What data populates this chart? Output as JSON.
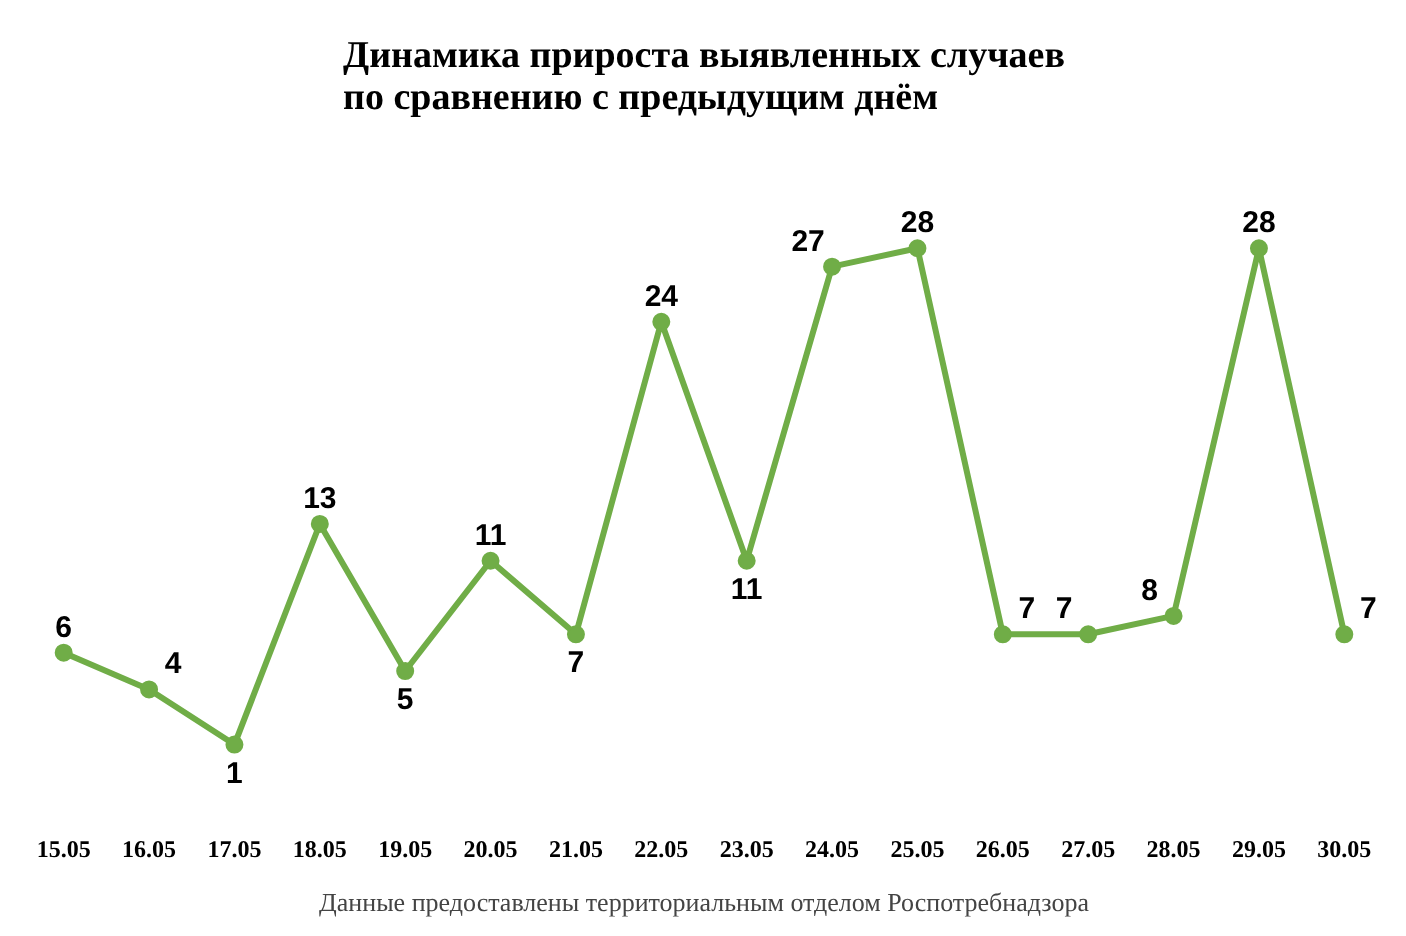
{
  "chart_data": {
    "type": "line",
    "title": "Динамика прироста выявленных случаев\nпо сравнению с предыдущим днём",
    "categories": [
      "15.05",
      "16.05",
      "17.05",
      "18.05",
      "19.05",
      "20.05",
      "21.05",
      "22.05",
      "23.05",
      "24.05",
      "25.05",
      "26.05",
      "27.05",
      "28.05",
      "29.05",
      "30.05"
    ],
    "series": [
      {
        "color": "#70ad47",
        "values": [
          6,
          4,
          1,
          13,
          5,
          11,
          7,
          24,
          11,
          27,
          28,
          7,
          7,
          8,
          28,
          7
        ]
      }
    ],
    "data_labels": true,
    "marker": "circle",
    "grid": false,
    "tick_labels": "x",
    "annotations": [
      "Данные предоставлены территориальным отделом Роспотребнадзора"
    ]
  }
}
